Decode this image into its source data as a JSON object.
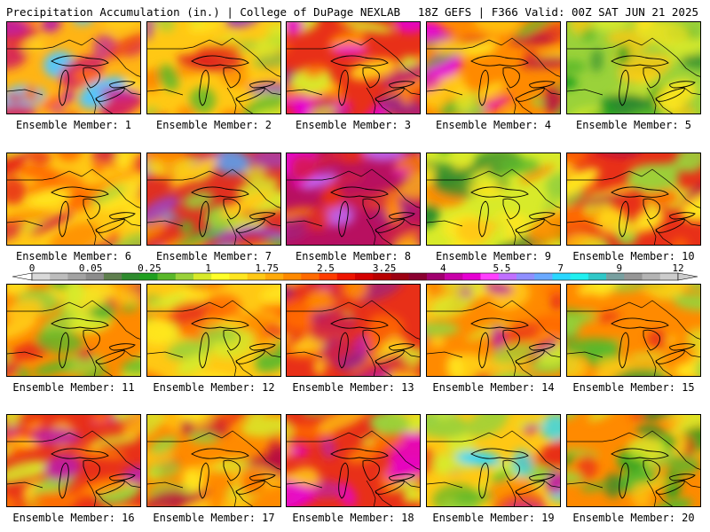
{
  "header": {
    "left_title": "Precipitation Accumulation (in.) | College of DuPage NEXLAB",
    "right_title": "18Z GEFS | F366 Valid: 00Z SAT JUN 21 2025"
  },
  "legend": {
    "ticks": [
      "0",
      "0.05",
      "0.25",
      "1",
      "1.75",
      "2.5",
      "3.25",
      "4",
      "5.5",
      "7",
      "9",
      "12"
    ],
    "colors": [
      "#d9d9d9",
      "#bdbdbd",
      "#a3a3a3",
      "#8c8c8c",
      "#5f7f4f",
      "#2e8b2e",
      "#1fa01f",
      "#5ab82a",
      "#9ad23a",
      "#d8ea2a",
      "#ffff28",
      "#ffe61f",
      "#ffc814",
      "#ffaa0a",
      "#ff8a00",
      "#ff6a00",
      "#ff3c00",
      "#ee1400",
      "#d40000",
      "#b80000",
      "#9c0012",
      "#8a0030",
      "#a0006e",
      "#c800a8",
      "#e600d2",
      "#ff40ff",
      "#c070ff",
      "#8f8fff",
      "#6aa9ff",
      "#29d7ff",
      "#20f0f0",
      "#30c8c8",
      "#78a0a0",
      "#969696",
      "#b4b4b4",
      "#cccccc"
    ]
  },
  "panels": [
    {
      "label": "Ensemble Member: 1",
      "colors": [
        "#ffb414",
        "#e83018",
        "#ff6a00",
        "#d42060",
        "#ffd21e",
        "#c020a0",
        "#50c8ff",
        "#ffe61f"
      ]
    },
    {
      "label": "Ensemble Member: 2",
      "colors": [
        "#ffc814",
        "#9ad23a",
        "#e02020",
        "#a040c0",
        "#ffe61f",
        "#5ab82a",
        "#ff8a00",
        "#d8ea2a"
      ]
    },
    {
      "label": "Ensemble Member: 3",
      "colors": [
        "#e83018",
        "#c02070",
        "#ff6a00",
        "#ffc814",
        "#a02080",
        "#ff8a00",
        "#d8ea2a",
        "#e600d2"
      ]
    },
    {
      "label": "Ensemble Member: 4",
      "colors": [
        "#ff8a00",
        "#e600d2",
        "#5ab82a",
        "#ffc814",
        "#e03020",
        "#9ad23a",
        "#ffe61f",
        "#b81040"
      ]
    },
    {
      "label": "Ensemble Member: 5",
      "colors": [
        "#9ad23a",
        "#2e8b2e",
        "#d8ea2a",
        "#5ab82a",
        "#ffe61f",
        "#1fa01f",
        "#ffc814",
        "#5ab82a"
      ]
    },
    {
      "label": "Ensemble Member: 6",
      "colors": [
        "#ffc814",
        "#e83018",
        "#ff8a00",
        "#9ad23a",
        "#ffe61f",
        "#d42040",
        "#ff6a00",
        "#d8ea2a"
      ]
    },
    {
      "label": "Ensemble Member: 7",
      "colors": [
        "#e03020",
        "#9ad23a",
        "#a040c0",
        "#5ab82a",
        "#ff8a00",
        "#ffc814",
        "#50a8ff",
        "#d8ea2a"
      ]
    },
    {
      "label": "Ensemble Member: 8",
      "colors": [
        "#b81060",
        "#e600d2",
        "#e83018",
        "#c070ff",
        "#ff8a00",
        "#a02080",
        "#ffc814",
        "#d42040"
      ]
    },
    {
      "label": "Ensemble Member: 9",
      "colors": [
        "#d8ea2a",
        "#5ab82a",
        "#ffc814",
        "#2e8b2e",
        "#9ad23a",
        "#ff8a00",
        "#ffe61f",
        "#1fa01f"
      ]
    },
    {
      "label": "Ensemble Member: 10",
      "colors": [
        "#e83018",
        "#ff8a00",
        "#ffc814",
        "#b81040",
        "#d8ea2a",
        "#9ad23a",
        "#ff6a00",
        "#ffe61f"
      ]
    },
    {
      "label": "Ensemble Member: 11",
      "colors": [
        "#ff8a00",
        "#e83018",
        "#ffc814",
        "#5ab82a",
        "#d8ea2a",
        "#d42040",
        "#9ad23a",
        "#ffe61f"
      ]
    },
    {
      "label": "Ensemble Member: 12",
      "colors": [
        "#ffc814",
        "#9ad23a",
        "#ff8a00",
        "#5ab82a",
        "#ffe61f",
        "#e83018",
        "#d8ea2a",
        "#ff6a00"
      ]
    },
    {
      "label": "Ensemble Member: 13",
      "colors": [
        "#e83018",
        "#a02080",
        "#ff8a00",
        "#c020a0",
        "#ffc814",
        "#d42040",
        "#ff6a00",
        "#d8ea2a"
      ]
    },
    {
      "label": "Ensemble Member: 14",
      "colors": [
        "#ff8a00",
        "#c020a0",
        "#ffc814",
        "#e83018",
        "#9ad23a",
        "#ff6a00",
        "#d8ea2a",
        "#ffe61f"
      ]
    },
    {
      "label": "Ensemble Member: 15",
      "colors": [
        "#ff8a00",
        "#5ab82a",
        "#ffc814",
        "#2e8b2e",
        "#e83018",
        "#9ad23a",
        "#d8ea2a",
        "#ffe61f"
      ]
    },
    {
      "label": "Ensemble Member: 16",
      "colors": [
        "#e83018",
        "#ff8a00",
        "#ffc814",
        "#c020a0",
        "#9ad23a",
        "#d8ea2a",
        "#ff6a00",
        "#ffe61f"
      ]
    },
    {
      "label": "Ensemble Member: 17",
      "colors": [
        "#ff8a00",
        "#e83018",
        "#ffc814",
        "#d8ea2a",
        "#b81040",
        "#ffe61f",
        "#ff6a00",
        "#9ad23a"
      ]
    },
    {
      "label": "Ensemble Member: 18",
      "colors": [
        "#e83018",
        "#c020a0",
        "#ffc814",
        "#ff8a00",
        "#e600d2",
        "#d8ea2a",
        "#9ad23a",
        "#ff6a00"
      ]
    },
    {
      "label": "Ensemble Member: 19",
      "colors": [
        "#ffc814",
        "#9ad23a",
        "#ff8a00",
        "#c020a0",
        "#d8ea2a",
        "#5ab82a",
        "#e83018",
        "#29d7ff"
      ]
    },
    {
      "label": "Ensemble Member: 20",
      "colors": [
        "#ff8a00",
        "#2e8b2e",
        "#9ad23a",
        "#e83018",
        "#5ab82a",
        "#ffc814",
        "#d8ea2a",
        "#1fa01f"
      ]
    }
  ]
}
